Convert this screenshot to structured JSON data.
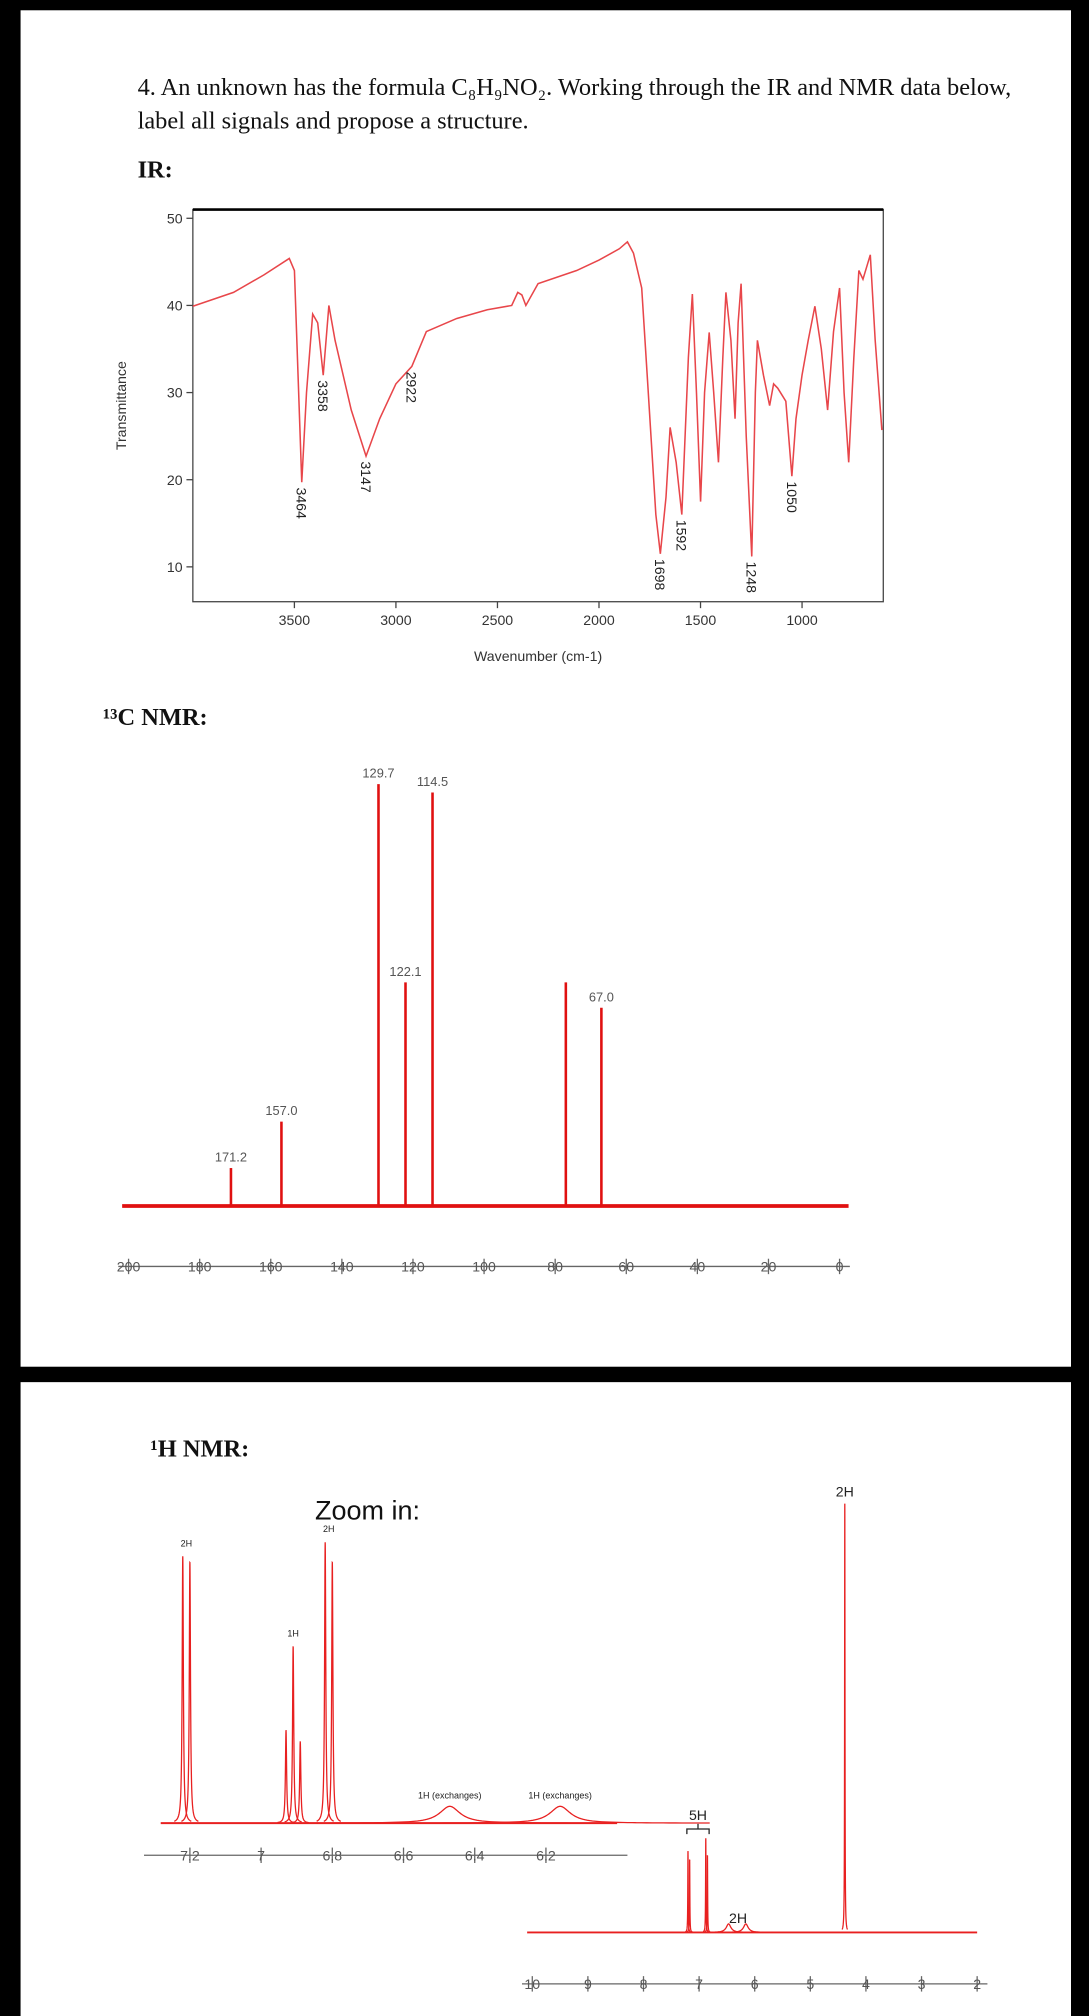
{
  "document": {
    "question_lines": [
      "4. An unknown has the formula C₈H₉NO₂. Working through the IR and NMR data below,",
      "label all signals and propose a structure."
    ],
    "ir_heading": "IR:",
    "c13_heading": "¹³C NMR:",
    "h1_heading": "¹H NMR:",
    "zoom_heading": "Zoom in:"
  },
  "chart_data": [
    {
      "type": "line",
      "xlabel": "Wavenumber (cm-1)",
      "ylabel": "Transmittance",
      "x": [
        4000,
        3800,
        3650,
        3525,
        3500,
        3464,
        3440,
        3410,
        3385,
        3358,
        3330,
        3300,
        3220,
        3147,
        3080,
        3000,
        2922,
        2850,
        2700,
        2550,
        2430,
        2400,
        2380,
        2360,
        2300,
        2110,
        2000,
        1900,
        1860,
        1830,
        1790,
        1760,
        1720,
        1698,
        1670,
        1650,
        1620,
        1592,
        1560,
        1540,
        1520,
        1500,
        1480,
        1457,
        1435,
        1412,
        1390,
        1375,
        1350,
        1330,
        1315,
        1300,
        1275,
        1248,
        1230,
        1220,
        1190,
        1160,
        1140,
        1120,
        1080,
        1050,
        1030,
        1000,
        970,
        937,
        905,
        874,
        845,
        815,
        793,
        770,
        745,
        720,
        700,
        664,
        640,
        607
      ],
      "series": [
        {
          "color": "#e8464a",
          "values": [
            39.9,
            41.5,
            43.5,
            45.4,
            44,
            19.7,
            30,
            39,
            38,
            32,
            40,
            36,
            28,
            22.7,
            27,
            31,
            33,
            37,
            38.5,
            39.5,
            40,
            41.5,
            41.2,
            40,
            42.5,
            44,
            45.2,
            46.5,
            47.3,
            46,
            42,
            31,
            16,
            11.5,
            18,
            26,
            22,
            16,
            34,
            41.3,
            30,
            17.5,
            30,
            36.9,
            30,
            22,
            34,
            41.5,
            36,
            27,
            38,
            42.5,
            25,
            11.2,
            30,
            36,
            32,
            28.5,
            31,
            30.5,
            29,
            20.4,
            27,
            32,
            36,
            39.9,
            35,
            28,
            37,
            42,
            30,
            22,
            34,
            44,
            43,
            45.8,
            36,
            25.7
          ]
        }
      ],
      "peak_labels": [
        3464,
        3358,
        3147,
        2922,
        1698,
        1592,
        1248,
        1050
      ],
      "xlim": [
        4000,
        600
      ],
      "ylim": [
        6,
        51
      ],
      "xticks": [
        3500,
        3000,
        2500,
        2000,
        1500,
        1000
      ],
      "yticks": [
        10,
        20,
        30,
        40,
        50
      ]
    },
    {
      "type": "stem",
      "x": [
        171.2,
        157.0,
        129.7,
        122.1,
        114.5,
        77,
        67.0
      ],
      "x_labels": [
        "171.2",
        "157.0",
        "129.7",
        "122.1",
        "114.5",
        null,
        "67.0"
      ],
      "values": [
        9,
        20,
        100,
        53,
        98,
        53,
        47
      ],
      "color": "#e01010",
      "xlim": [
        200,
        0
      ],
      "ylim": [
        0,
        103
      ],
      "xticks": [
        200,
        180,
        160,
        140,
        120,
        100,
        80,
        60,
        40,
        20,
        0
      ]
    },
    {
      "type": "nmr",
      "x": [
        7.22,
        7.2,
        6.93,
        6.91,
        6.89,
        6.82,
        6.8,
        6.47,
        6.16
      ],
      "values": [
        95,
        93,
        33,
        63,
        29,
        100,
        93,
        6,
        6
      ],
      "widths": [
        0.002,
        0.002,
        0.002,
        0.002,
        0.002,
        0.002,
        0.002,
        0.035,
        0.035
      ],
      "color": "#e82020",
      "annotations": [
        {
          "x": 7.21,
          "label": "2H"
        },
        {
          "x": 6.91,
          "label": "1H"
        },
        {
          "x": 6.81,
          "label": "2H"
        },
        {
          "x": 6.47,
          "label": "1H (exchanges)"
        },
        {
          "x": 6.16,
          "label": "1H (exchanges)"
        }
      ],
      "xlim": [
        7.3,
        6.0
      ],
      "ylim": [
        0,
        100
      ],
      "xticks": [
        7.2,
        7,
        6.8,
        6.6,
        6.4,
        6.2
      ]
    },
    {
      "type": "nmr",
      "x": [
        7.2,
        7.17,
        6.88,
        6.85,
        6.47,
        6.16,
        4.38
      ],
      "values": [
        19,
        17,
        22,
        18,
        2,
        2,
        100
      ],
      "widths": [
        0.004,
        0.004,
        0.004,
        0.004,
        0.05,
        0.05,
        0.004
      ],
      "color": "#e82020",
      "annotations": [
        {
          "x": 7.02,
          "label": "5H",
          "span": [
            7.22,
            6.82
          ]
        },
        {
          "x": 6.3,
          "label": "2H"
        },
        {
          "x": 4.38,
          "label": "2H"
        }
      ],
      "xlim": [
        10,
        2
      ],
      "ylim": [
        0,
        100
      ],
      "xticks": [
        10,
        9,
        8,
        7,
        6,
        5,
        4,
        3,
        2
      ]
    }
  ]
}
